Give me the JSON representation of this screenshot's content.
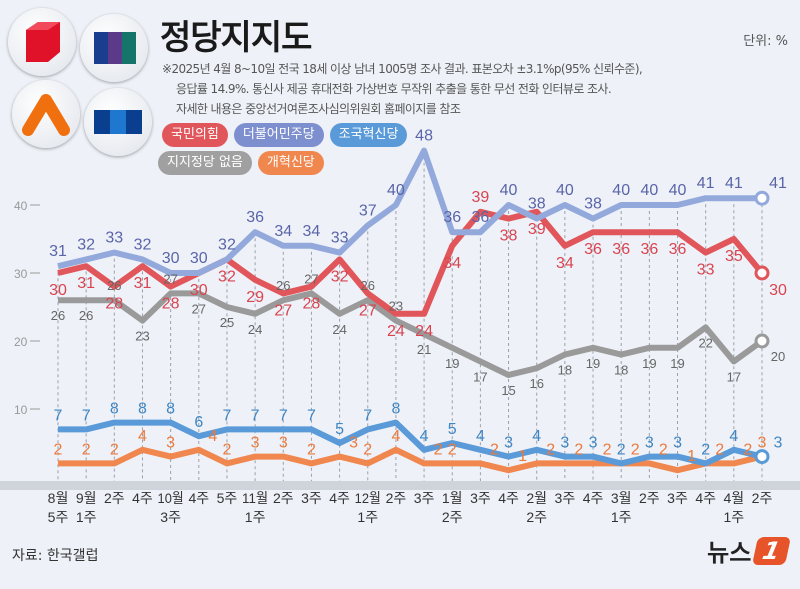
{
  "header": {
    "title": "정당지지도",
    "unit": "단위: %",
    "notes": [
      "※2025년 4월 8~10일 전국 18세 이상 남녀 1005명 조사 결과. 표본오차 ±3.1%p(95% 신뢰수준),",
      "응답률 14.9%. 통신사 제공 휴대전화 가상번호 무작위 추출을 통한 무선 전화 인터뷰로 조사.",
      "자세한 내용은 중앙선거여론조사심의위원회 홈페이지를 참조"
    ]
  },
  "logos": [
    "people-power-party-logo",
    "democratic-party-logo",
    "reform-party-logo",
    "rebuilding-korea-party-logo"
  ],
  "footer": {
    "source": "자료: 한국갤럽",
    "brand": "뉴스",
    "brand_mark": "1"
  },
  "chart_data": {
    "type": "line",
    "title": "정당지지도",
    "ylim": [
      0,
      48
    ],
    "yticks": [
      10,
      20,
      30,
      40
    ],
    "grid": "vertical dashed",
    "legend_placement": "top-left",
    "categories": [
      [
        "8월",
        "5주"
      ],
      [
        "9월",
        "1주"
      ],
      [
        "2주"
      ],
      [
        "4주"
      ],
      [
        "10월",
        "3주"
      ],
      [
        "4주"
      ],
      [
        "5주"
      ],
      [
        "11월",
        "1주"
      ],
      [
        "2주"
      ],
      [
        "3주"
      ],
      [
        "4주"
      ],
      [
        "12월",
        "1주"
      ],
      [
        "2주"
      ],
      [
        "3주"
      ],
      [
        "1월",
        "2주"
      ],
      [
        "3주"
      ],
      [
        "4주"
      ],
      [
        "2월",
        "2주"
      ],
      [
        "3주"
      ],
      [
        "4주"
      ],
      [
        "3월",
        "1주"
      ],
      [
        "2주"
      ],
      [
        "3주"
      ],
      [
        "4주"
      ],
      [
        "4월",
        "1주"
      ],
      [
        "2주"
      ]
    ],
    "series": [
      {
        "name": "국민의힘",
        "color": "#e0565a",
        "label_color": "#d94450",
        "values": [
          30,
          31,
          28,
          31,
          28,
          30,
          32,
          29,
          27,
          28,
          32,
          27,
          24,
          24,
          34,
          39,
          38,
          39,
          34,
          36,
          36,
          36,
          36,
          33,
          35,
          30
        ]
      },
      {
        "name": "더불어민주당",
        "color": "#93a9dc",
        "label_color": "#5a64a8",
        "values": [
          31,
          32,
          33,
          32,
          30,
          30,
          32,
          36,
          34,
          34,
          33,
          37,
          40,
          48,
          36,
          36,
          40,
          38,
          40,
          38,
          40,
          40,
          40,
          41,
          41,
          41
        ]
      },
      {
        "name": "조국혁신당",
        "color": "#5a9ad8",
        "label_color": "#3f86c4",
        "values": [
          7,
          7,
          8,
          8,
          8,
          6,
          7,
          7,
          7,
          7,
          5,
          7,
          8,
          4,
          5,
          4,
          3,
          4,
          3,
          3,
          2,
          3,
          3,
          2,
          4,
          3
        ]
      },
      {
        "name": "지지정당 없음",
        "color": "#9a9a9a",
        "label_color": "#666666",
        "values": [
          26,
          26,
          26,
          23,
          27,
          27,
          25,
          24,
          26,
          27,
          24,
          26,
          23,
          21,
          19,
          17,
          15,
          16,
          18,
          19,
          18,
          19,
          19,
          22,
          17,
          20
        ]
      },
      {
        "name": "개혁신당",
        "color": "#f0874f",
        "label_color": "#ec7a3c",
        "values": [
          2,
          2,
          2,
          4,
          3,
          4,
          2,
          3,
          3,
          2,
          3,
          2,
          4,
          2,
          2,
          2,
          1,
          2,
          2,
          2,
          2,
          2,
          1,
          2,
          2,
          3
        ]
      }
    ]
  }
}
